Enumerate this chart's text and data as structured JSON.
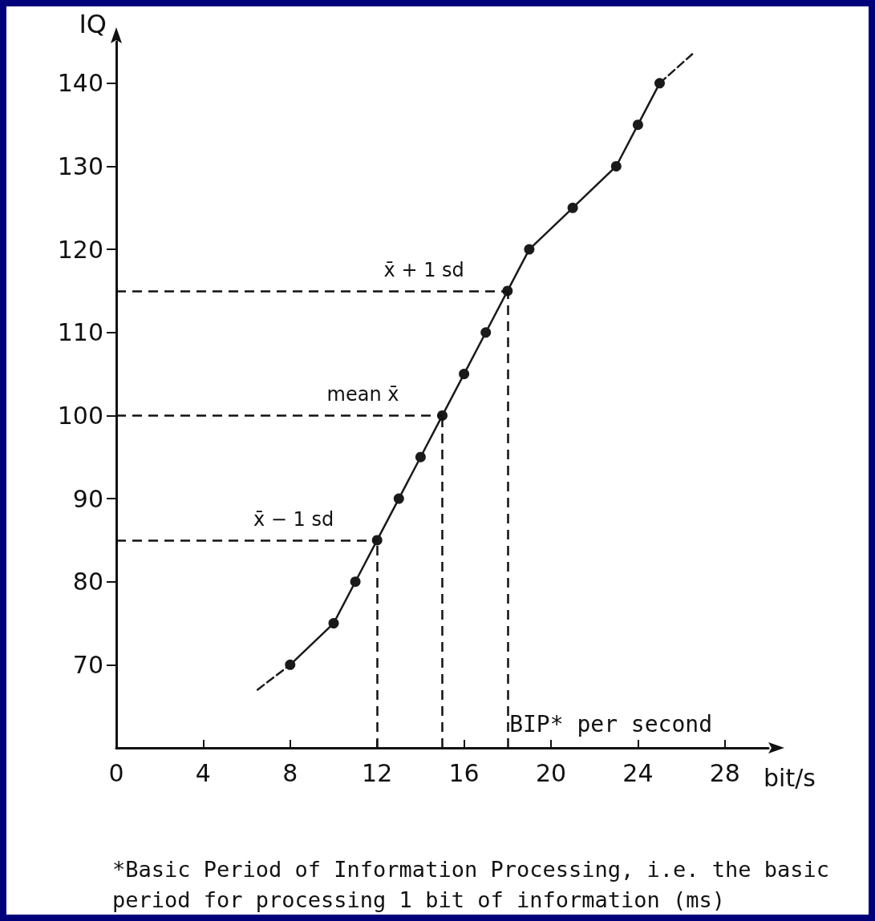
{
  "chart_data": {
    "type": "line",
    "xlabel": "BIP* per second",
    "ylabel": "IQ",
    "xlim": [
      0,
      30
    ],
    "ylim": [
      60,
      145
    ],
    "xticks": [
      0,
      4,
      8,
      12,
      16,
      20,
      24,
      28
    ],
    "yticks": [
      70,
      80,
      90,
      100,
      110,
      120,
      130,
      140
    ],
    "marker": "circle",
    "grid": false,
    "series": [
      {
        "color": "#1a1a1a",
        "x": [
          8,
          10,
          11,
          12,
          13,
          14,
          15,
          16,
          17,
          18,
          19,
          21,
          23,
          24,
          25
        ],
        "values": [
          70,
          75,
          80,
          85,
          90,
          95,
          100,
          105,
          110,
          115,
          120,
          125,
          130,
          135,
          140
        ]
      },
      {
        "color": "#1a1a1a",
        "line_style": "dashed",
        "marker": "none",
        "x": [
          6.5,
          8
        ],
        "values": [
          67,
          70
        ]
      },
      {
        "color": "#1a1a1a",
        "line_style": "dashed",
        "marker": "none",
        "x": [
          25,
          26.5
        ],
        "values": [
          140,
          143.5
        ]
      }
    ],
    "ref_lines": [
      {
        "axis": "y",
        "value": 85,
        "label": "x̄ − 1 sd"
      },
      {
        "axis": "y",
        "value": 100,
        "label": "mean x̄"
      },
      {
        "axis": "y",
        "value": 115,
        "label": "x̄ + 1 sd"
      },
      {
        "axis": "x",
        "value": 12
      },
      {
        "axis": "x",
        "value": 15
      },
      {
        "axis": "x",
        "value": 18
      }
    ],
    "annotations": [
      "bit/s",
      "*Basic Period of Information Processing, i.e. the basic period for processing 1 bit of information (ms)"
    ]
  }
}
